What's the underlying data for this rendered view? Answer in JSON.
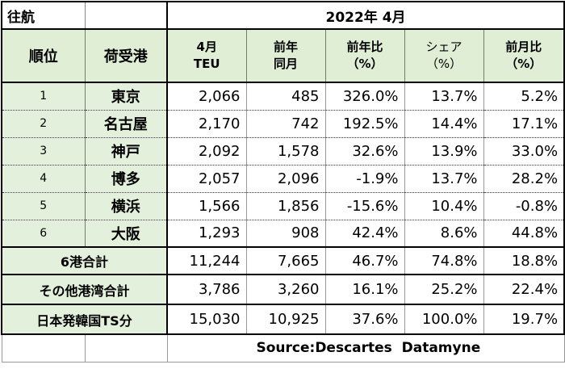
{
  "corner_label": "往航",
  "period": "2022年 4月",
  "columns": {
    "rank": "順位",
    "port": "荷受港",
    "teu_line1": "4月",
    "teu_line2": "TEU",
    "prev_line1": "前年",
    "prev_line2": "同月",
    "yoy_line1": "前年比",
    "yoy_line2": "（%）",
    "share_line1": "シェア",
    "share_line2": "（%）",
    "mom_line1": "前月比",
    "mom_line2": "（%）"
  },
  "rows": [
    {
      "rank": "1",
      "port": "東京",
      "teu": "2,066",
      "prev": "485",
      "yoy": "326.0%",
      "share": "13.7%",
      "mom": "5.2%"
    },
    {
      "rank": "2",
      "port": "名古屋",
      "teu": "2,170",
      "prev": "742",
      "yoy": "192.5%",
      "share": "14.4%",
      "mom": "17.1%"
    },
    {
      "rank": "3",
      "port": "神戸",
      "teu": "2,092",
      "prev": "1,578",
      "yoy": "32.6%",
      "share": "13.9%",
      "mom": "33.0%"
    },
    {
      "rank": "4",
      "port": "博多",
      "teu": "2,057",
      "prev": "2,096",
      "yoy": "-1.9%",
      "share": "13.7%",
      "mom": "28.2%"
    },
    {
      "rank": "5",
      "port": "横浜",
      "teu": "1,566",
      "prev": "1,856",
      "yoy": "-15.6%",
      "share": "10.4%",
      "mom": "-0.8%"
    },
    {
      "rank": "6",
      "port": "大阪",
      "teu": "1,293",
      "prev": "908",
      "yoy": "42.4%",
      "share": "8.6%",
      "mom": "44.8%"
    }
  ],
  "totals": [
    {
      "label": "6港合計",
      "teu": "11,244",
      "prev": "7,665",
      "yoy": "46.7%",
      "share": "74.8%",
      "mom": "18.8%"
    },
    {
      "label": "その他港湾合計",
      "teu": "3,786",
      "prev": "3,260",
      "yoy": "16.1%",
      "share": "25.2%",
      "mom": "22.4%"
    },
    {
      "label": "日本発韓国TS分",
      "teu": "15,030",
      "prev": "10,925",
      "yoy": "37.6%",
      "share": "100.0%",
      "mom": "19.7%"
    }
  ],
  "source": "Source:Descartes  Datamyne"
}
